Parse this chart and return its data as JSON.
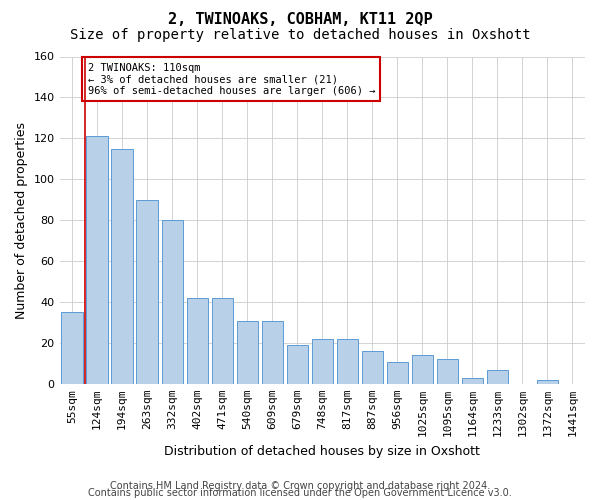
{
  "title": "2, TWINOAKS, COBHAM, KT11 2QP",
  "subtitle": "Size of property relative to detached houses in Oxshott",
  "xlabel": "Distribution of detached houses by size in Oxshott",
  "ylabel": "Number of detached properties",
  "footer_line1": "Contains HM Land Registry data © Crown copyright and database right 2024.",
  "footer_line2": "Contains public sector information licensed under the Open Government Licence v3.0.",
  "categories": [
    "55sqm",
    "124sqm",
    "194sqm",
    "263sqm",
    "332sqm",
    "402sqm",
    "471sqm",
    "540sqm",
    "609sqm",
    "679sqm",
    "748sqm",
    "817sqm",
    "887sqm",
    "956sqm",
    "1025sqm",
    "1095sqm",
    "1164sqm",
    "1233sqm",
    "1302sqm",
    "1372sqm",
    "1441sqm"
  ],
  "bar_values": [
    35,
    121,
    115,
    90,
    80,
    42,
    42,
    31,
    31,
    19,
    22,
    22,
    16,
    11,
    14,
    12,
    3,
    7,
    0,
    2,
    0
  ],
  "bar_color": "#b8d0e8",
  "bar_edge_color": "#5b9bd5",
  "annotation_box_color": "#ffffff",
  "annotation_border_color": "#cc0000",
  "annotation_line_color": "#cc0000",
  "annotation_text_line1": "2 TWINOAKS: 110sqm",
  "annotation_text_line2": "← 3% of detached houses are smaller (21)",
  "annotation_text_line3": "96% of semi-detached houses are larger (606) →",
  "vline_x": 0.5,
  "ylim": [
    0,
    160
  ],
  "yticks": [
    0,
    20,
    40,
    60,
    80,
    100,
    120,
    140,
    160
  ],
  "grid_color": "#cccccc",
  "background_color": "#ffffff",
  "title_fontsize": 11,
  "subtitle_fontsize": 10,
  "axis_label_fontsize": 9,
  "tick_fontsize": 8,
  "footer_fontsize": 7
}
